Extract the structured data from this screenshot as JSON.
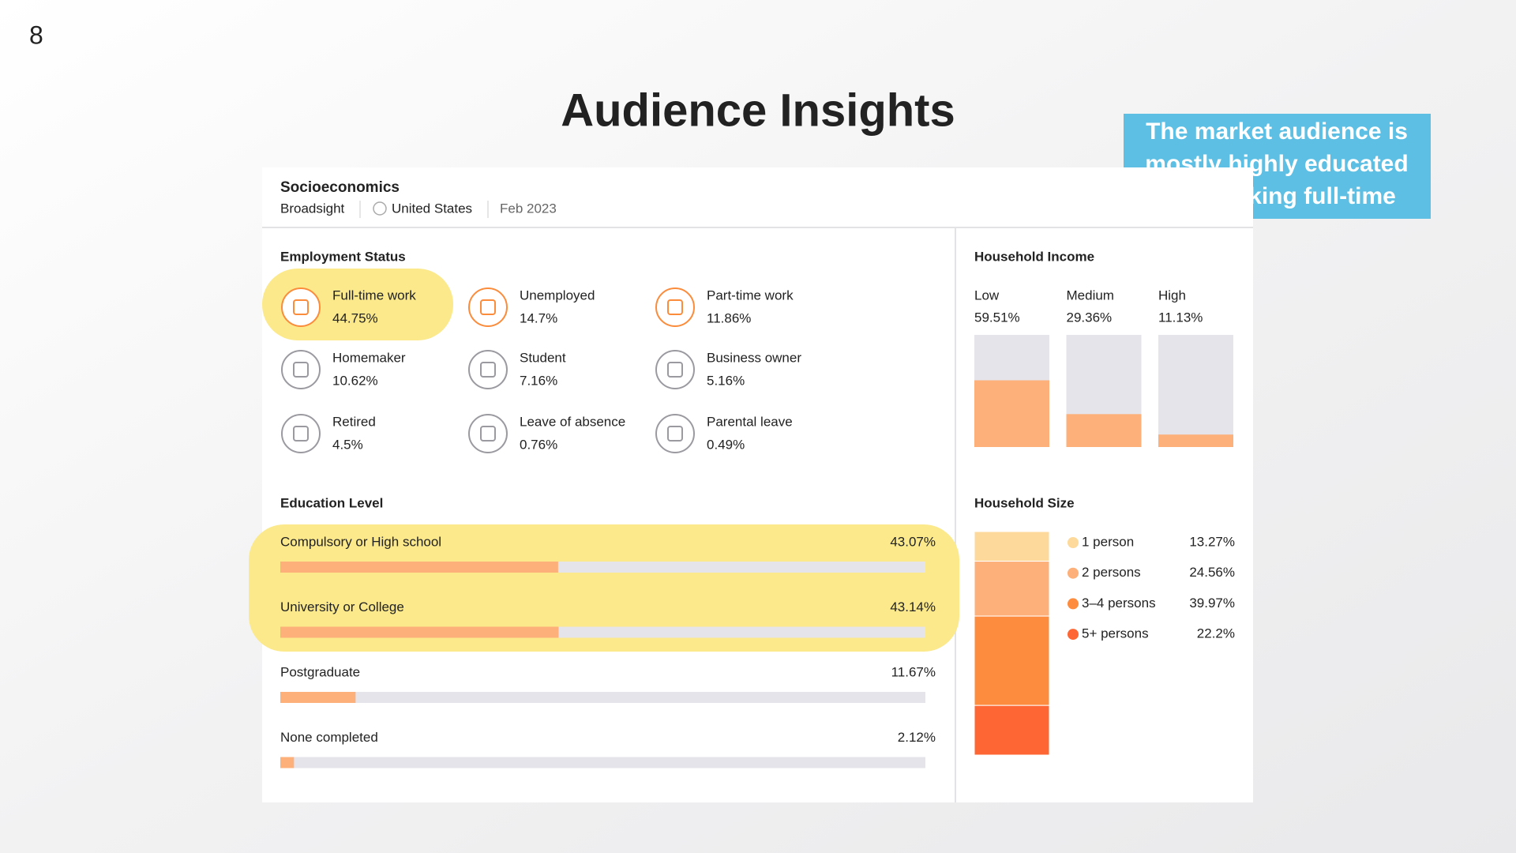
{
  "slide_number": "8",
  "title": "Audience Insights",
  "callout": [
    "The market audience is",
    "mostly highly educated",
    "and working full-time"
  ],
  "card": {
    "title": "Socioeconomics",
    "source": "Broadsight",
    "location": "United States",
    "date": "Feb 2023"
  },
  "employment": {
    "title": "Employment Status",
    "items": [
      {
        "name": "Full-time work",
        "value": "44.75%"
      },
      {
        "name": "Unemployed",
        "value": "14.7%"
      },
      {
        "name": "Part-time work",
        "value": "11.86%"
      },
      {
        "name": "Homemaker",
        "value": "10.62%"
      },
      {
        "name": "Student",
        "value": "7.16%"
      },
      {
        "name": "Business owner",
        "value": "5.16%"
      },
      {
        "name": "Retired",
        "value": "4.5%"
      },
      {
        "name": "Leave of absence",
        "value": "0.76%"
      },
      {
        "name": "Parental leave",
        "value": "0.49%"
      }
    ]
  },
  "education": {
    "title": "Education Level",
    "items": [
      {
        "name": "Compulsory or High school",
        "value": 43.07,
        "label": "43.07%"
      },
      {
        "name": "University or College",
        "value": 43.14,
        "label": "43.14%"
      },
      {
        "name": "Postgraduate",
        "value": 11.67,
        "label": "11.67%"
      },
      {
        "name": "None completed",
        "value": 2.12,
        "label": "2.12%"
      }
    ]
  },
  "income": {
    "title": "Household Income",
    "items": [
      {
        "name": "Low",
        "value": 59.51,
        "label": "59.51%"
      },
      {
        "name": "Medium",
        "value": 29.36,
        "label": "29.36%"
      },
      {
        "name": "High",
        "value": 11.13,
        "label": "11.13%"
      }
    ]
  },
  "size": {
    "title": "Household Size",
    "items": [
      {
        "name": "1 person",
        "value": 13.27,
        "label": "13.27%",
        "color": "#fdd99b"
      },
      {
        "name": "2 persons",
        "value": 24.56,
        "label": "24.56%",
        "color": "#fdb07a"
      },
      {
        "name": "3–4 persons",
        "value": 39.97,
        "label": "39.97%",
        "color": "#fd8c3f"
      },
      {
        "name": "5+ persons",
        "value": 22.2,
        "label": "22.2%",
        "color": "#fe6733"
      }
    ]
  }
}
